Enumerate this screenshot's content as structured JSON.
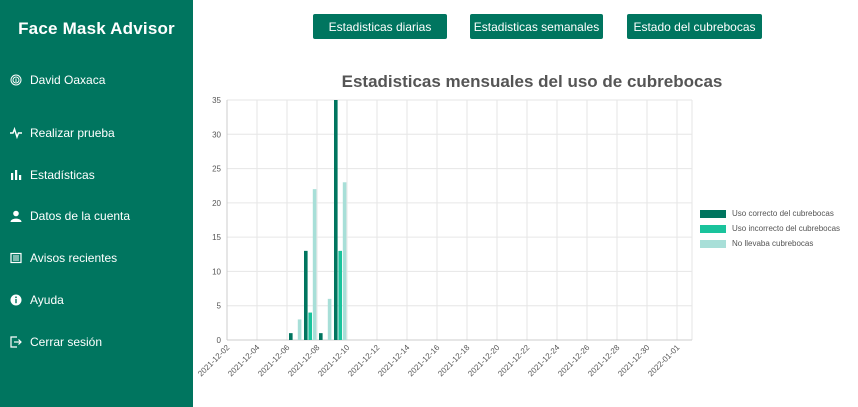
{
  "sidebar": {
    "brand": "Face Mask Advisor",
    "user": "David Oaxaca",
    "items": [
      {
        "label": "Realizar prueba",
        "icon": "pulse-icon"
      },
      {
        "label": "Estadísticas",
        "icon": "bar-chart-icon"
      },
      {
        "label": "Datos de la cuenta",
        "icon": "user-icon"
      },
      {
        "label": "Avisos recientes",
        "icon": "newspaper-icon"
      },
      {
        "label": "Ayuda",
        "icon": "info-icon"
      },
      {
        "label": "Cerrar sesión",
        "icon": "logout-icon"
      }
    ]
  },
  "tabs": {
    "daily": "Estadisticas diarias",
    "weekly": "Estadisticas semanales",
    "status": "Estado del cubrebocas"
  },
  "colors": {
    "brand": "#00755f",
    "correct": "#00755f",
    "incorrect": "#1ac39c",
    "none": "#a8dfd8"
  },
  "chart_data": {
    "type": "bar",
    "title": "Estadisticas mensuales del uso de cubrebocas",
    "ylim": [
      0,
      35
    ],
    "yticks": [
      0,
      5,
      10,
      15,
      20,
      25,
      30,
      35
    ],
    "categories": [
      "2021-12-02",
      "2021-12-03",
      "2021-12-04",
      "2021-12-05",
      "2021-12-06",
      "2021-12-07",
      "2021-12-08",
      "2021-12-09",
      "2021-12-10",
      "2021-12-11",
      "2021-12-12",
      "2021-12-13",
      "2021-12-14",
      "2021-12-15",
      "2021-12-16",
      "2021-12-17",
      "2021-12-18",
      "2021-12-19",
      "2021-12-20",
      "2021-12-21",
      "2021-12-22",
      "2021-12-23",
      "2021-12-24",
      "2021-12-25",
      "2021-12-26",
      "2021-12-27",
      "2021-12-28",
      "2021-12-29",
      "2021-12-30",
      "2021-12-31",
      "2022-01-01"
    ],
    "xtick_labels": [
      "2021-12-02",
      "2021-12-04",
      "2021-12-06",
      "2021-12-08",
      "2021-12-10",
      "2021-12-12",
      "2021-12-14",
      "2021-12-16",
      "2021-12-18",
      "2021-12-20",
      "2021-12-22",
      "2021-12-24",
      "2021-12-26",
      "2021-12-28",
      "2021-12-30",
      "2022-01-01"
    ],
    "series": [
      {
        "name": "Uso correcto del cubrebocas",
        "color": "#00755f",
        "values": [
          0,
          0,
          0,
          0,
          1,
          13,
          1,
          35,
          0,
          0,
          0,
          0,
          0,
          0,
          0,
          0,
          0,
          0,
          0,
          0,
          0,
          0,
          0,
          0,
          0,
          0,
          0,
          0,
          0,
          0,
          0
        ]
      },
      {
        "name": "Uso incorrecto del cubrebocas",
        "color": "#1ac39c",
        "values": [
          0,
          0,
          0,
          0,
          0,
          4,
          0,
          13,
          0,
          0,
          0,
          0,
          0,
          0,
          0,
          0,
          0,
          0,
          0,
          0,
          0,
          0,
          0,
          0,
          0,
          0,
          0,
          0,
          0,
          0,
          0
        ]
      },
      {
        "name": "No llevaba cubrebocas",
        "color": "#a8dfd8",
        "values": [
          0,
          0,
          0,
          0,
          3,
          22,
          6,
          23,
          0,
          0,
          0,
          0,
          0,
          0,
          0,
          0,
          0,
          0,
          0,
          0,
          0,
          0,
          0,
          0,
          0,
          0,
          0,
          0,
          0,
          0,
          0
        ]
      }
    ]
  }
}
